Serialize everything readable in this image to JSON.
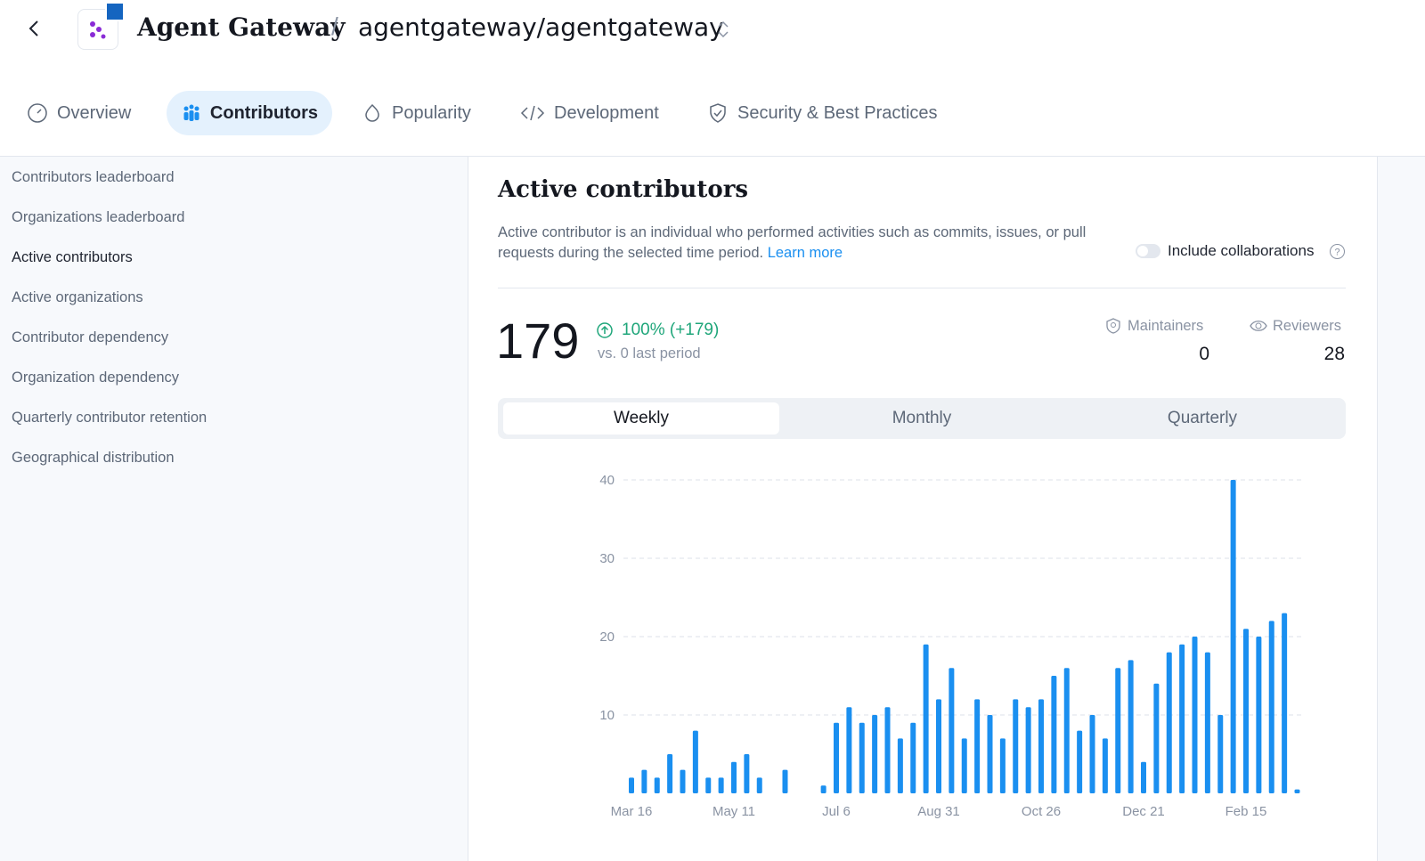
{
  "header": {
    "title": "Agent Gateway",
    "separator": "/",
    "repository": "agentgateway/agentgateway"
  },
  "tabs": [
    "Overview",
    "Contributors",
    "Popularity",
    "Development",
    "Security & Best Practices"
  ],
  "sidebar": [
    "Contributors leaderboard",
    "Organizations leaderboard",
    "Active contributors",
    "Active organizations",
    "Contributor dependency",
    "Organization dependency",
    "Quarterly contributor retention",
    "Geographical distribution"
  ],
  "section": {
    "title": "Active contributors",
    "description": "Active contributor is an individual who performed activities such as commits, issues, or pull requests during the selected time period.",
    "link": "Learn more",
    "toggle_label": "Include collaborations"
  },
  "stats": {
    "total": 179,
    "change": "100% (+179)",
    "comparison": "vs. 0 last period",
    "maintainers_label": "Maintainers",
    "maintainers": 0,
    "reviewers_label": "Reviewers",
    "reviewers": 28
  },
  "periods": [
    "Weekly",
    "Monthly",
    "Quarterly"
  ],
  "chart_data": {
    "type": "bar",
    "categories": [
      "Mar 16",
      null,
      null,
      null,
      null,
      null,
      null,
      null,
      "May 11",
      null,
      null,
      null,
      null,
      null,
      null,
      null,
      "Jul 6",
      null,
      null,
      null,
      null,
      null,
      null,
      null,
      "Aug 31",
      null,
      null,
      null,
      null,
      null,
      null,
      null,
      "Oct 26",
      null,
      null,
      null,
      null,
      null,
      null,
      null,
      "Dec 21",
      null,
      null,
      null,
      null,
      null,
      null,
      null,
      "Feb 15",
      null,
      null,
      null,
      null
    ],
    "values": [
      2,
      3,
      2,
      5,
      3,
      8,
      2,
      2,
      4,
      5,
      2,
      null,
      3,
      null,
      null,
      1,
      9,
      11,
      9,
      10,
      11,
      7,
      9,
      19,
      12,
      16,
      7,
      12,
      10,
      7,
      12,
      11,
      12,
      15,
      16,
      8,
      10,
      7,
      16,
      17,
      4,
      14,
      18,
      19,
      20,
      18,
      10,
      40,
      21,
      20,
      22,
      23,
      0.5
    ],
    "color": "#1a8ff0",
    "ylim": [
      0,
      40
    ],
    "yticks": [
      10,
      20,
      30,
      40
    ],
    "grid": true
  }
}
